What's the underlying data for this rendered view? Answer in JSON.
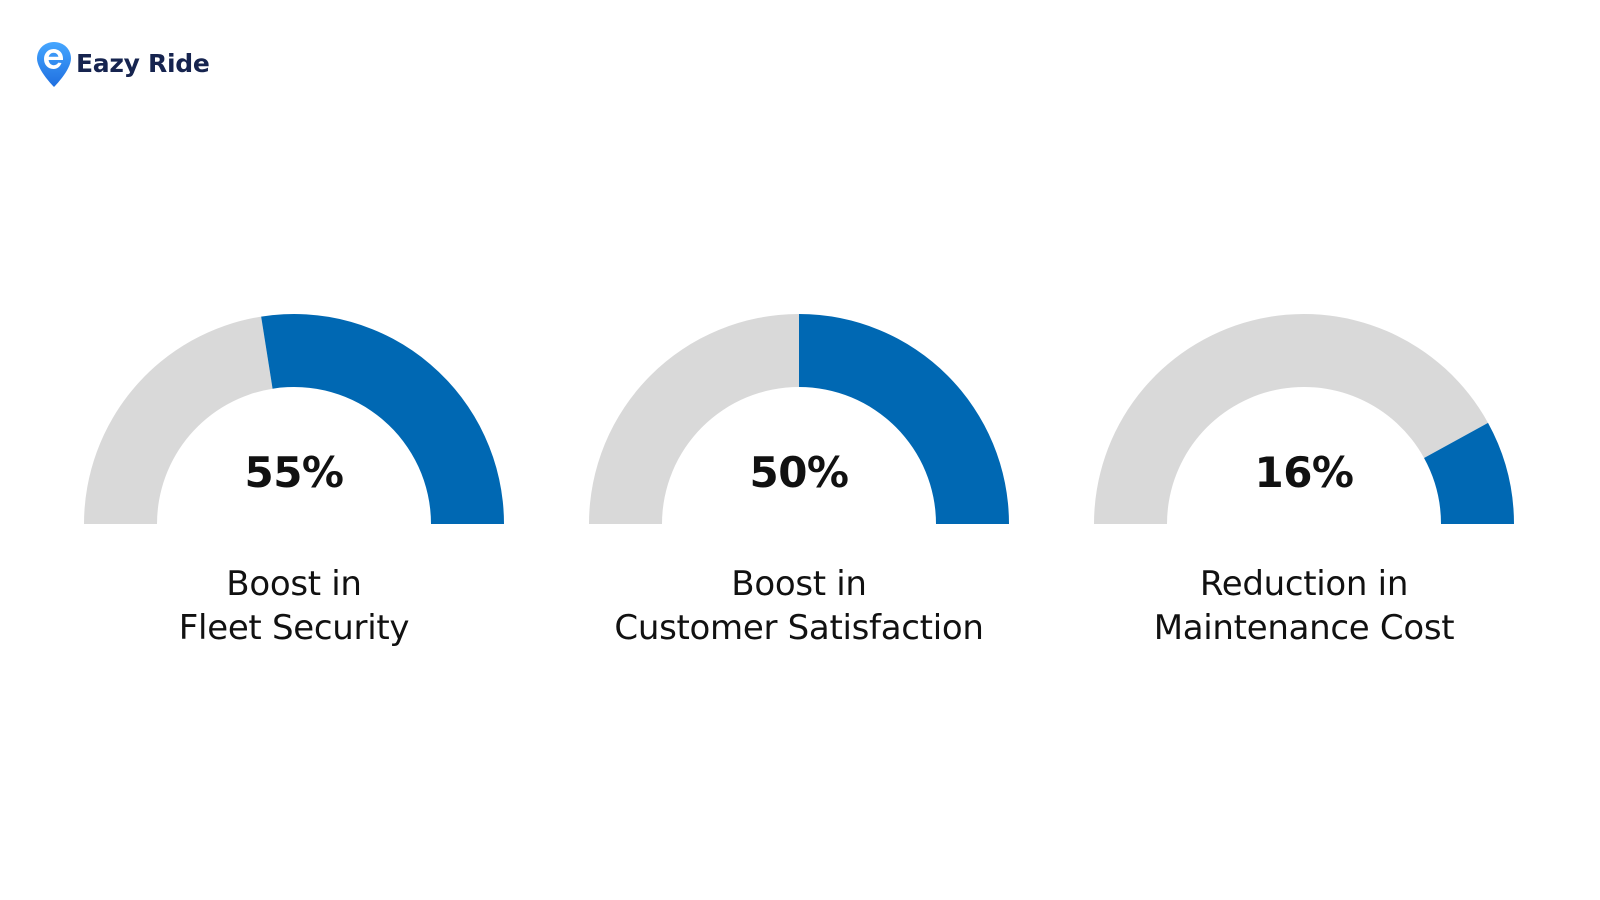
{
  "brand": {
    "name": "Eazy Ride",
    "primary_color": "#0068b3",
    "text_color": "#16244f",
    "accent_color": "#3a8bf0"
  },
  "chart_data": [
    {
      "type": "gauge",
      "value": 55,
      "max": 100,
      "value_label": "55%",
      "label_lines": [
        "Boost in",
        "Fleet Security"
      ],
      "fill_color": "#0068b3",
      "track_color": "#d9d9d9"
    },
    {
      "type": "gauge",
      "value": 50,
      "max": 100,
      "value_label": "50%",
      "label_lines": [
        "Boost in",
        "Customer Satisfaction"
      ],
      "fill_color": "#0068b3",
      "track_color": "#d9d9d9"
    },
    {
      "type": "gauge",
      "value": 16,
      "max": 100,
      "value_label": "16%",
      "label_lines": [
        "Reduction in",
        "Maintenance Cost"
      ],
      "fill_color": "#0068b3",
      "track_color": "#d9d9d9"
    }
  ]
}
